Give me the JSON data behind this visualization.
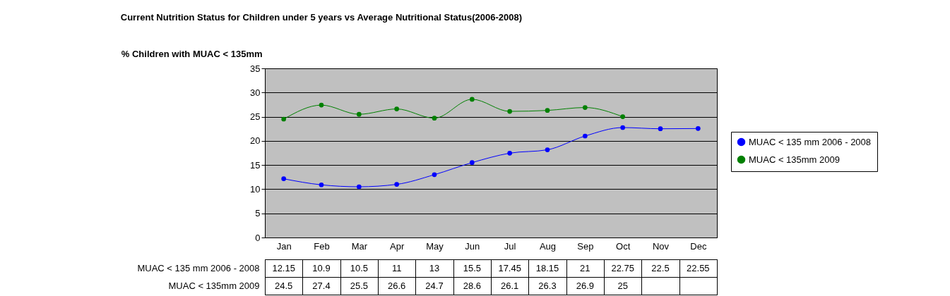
{
  "chart_data": {
    "type": "line",
    "title": "Current Nutrition Status for Children under 5 years vs Average Nutritional Status(2006-2008)",
    "ylabel": "% Children with MUAC < 135mm",
    "categories": [
      "Jan",
      "Feb",
      "Mar",
      "Apr",
      "May",
      "Jun",
      "Jul",
      "Aug",
      "Sep",
      "Oct",
      "Nov",
      "Dec"
    ],
    "series": [
      {
        "name": "MUAC < 135 mm 2006 - 2008",
        "color": "#0000ff",
        "values": [
          12.15,
          10.9,
          10.5,
          11,
          13,
          15.5,
          17.45,
          18.15,
          21,
          22.75,
          22.5,
          22.55
        ]
      },
      {
        "name": "MUAC < 135mm  2009",
        "color": "#008000",
        "values": [
          24.5,
          27.4,
          25.5,
          26.6,
          24.7,
          28.6,
          26.1,
          26.3,
          26.9,
          25,
          null,
          null
        ]
      }
    ],
    "ylim": [
      0,
      35
    ],
    "yticks": [
      0,
      5,
      10,
      15,
      20,
      25,
      30,
      35
    ],
    "grid": "y",
    "legend": "right",
    "marker": "circle",
    "line_style": "solid",
    "data_labels": true
  }
}
